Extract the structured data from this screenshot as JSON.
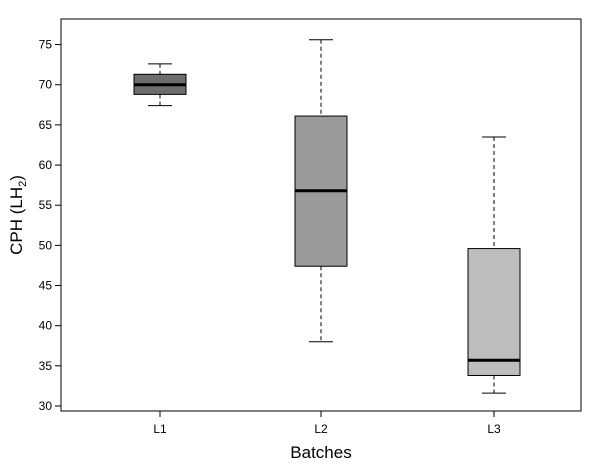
{
  "chart_data": {
    "type": "boxplot",
    "title": "",
    "xlabel": "Batches",
    "ylabel": {
      "main": "CPH (LH",
      "subscript": "2",
      "close": ")"
    },
    "ylim": [
      30,
      77
    ],
    "yticks": [
      30,
      35,
      40,
      45,
      50,
      55,
      60,
      65,
      70,
      75
    ],
    "categories": [
      "L1",
      "L2",
      "L3"
    ],
    "boxes": [
      {
        "name": "L1",
        "whisker_low": 67.4,
        "q1": 68.8,
        "median": 70.0,
        "q3": 71.3,
        "whisker_high": 72.6,
        "color": "#6e6e6e"
      },
      {
        "name": "L2",
        "whisker_low": 38.0,
        "q1": 47.4,
        "median": 56.8,
        "q3": 66.1,
        "whisker_high": 75.6,
        "color": "#9b9999"
      },
      {
        "name": "L3",
        "whisker_low": 31.6,
        "q1": 33.8,
        "median": 35.7,
        "q3": 49.6,
        "whisker_high": 63.5,
        "color": "#bdbdbd"
      }
    ],
    "grid": false,
    "legend": "none"
  }
}
